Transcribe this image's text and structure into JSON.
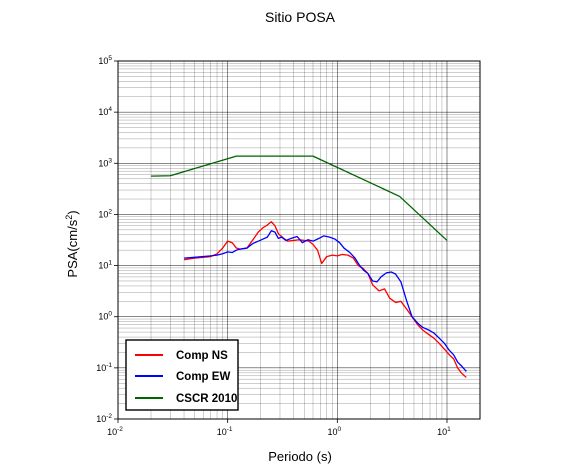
{
  "chart_data": {
    "type": "line",
    "title": "Sitio POSA",
    "xlabel": "Periodo (s)",
    "ylabel_base": "PSA(cm/s",
    "ylabel_sup": "2",
    "ylabel_tail": ")",
    "x_scale": "log",
    "y_scale": "log",
    "xlim": [
      0.01,
      20
    ],
    "ylim": [
      0.01,
      100000
    ],
    "grid": true,
    "legend_position": "bottom-left",
    "x_ticks": [
      {
        "value": 0.01,
        "base": "10",
        "exp": "-2"
      },
      {
        "value": 0.1,
        "base": "10",
        "exp": "-1"
      },
      {
        "value": 1,
        "base": "10",
        "exp": "0"
      },
      {
        "value": 10,
        "base": "10",
        "exp": "1"
      }
    ],
    "y_ticks": [
      {
        "value": 0.01,
        "base": "10",
        "exp": "-2"
      },
      {
        "value": 0.1,
        "base": "10",
        "exp": "-1"
      },
      {
        "value": 1,
        "base": "10",
        "exp": "0"
      },
      {
        "value": 10,
        "base": "10",
        "exp": "1"
      },
      {
        "value": 100,
        "base": "10",
        "exp": "2"
      },
      {
        "value": 1000,
        "base": "10",
        "exp": "3"
      },
      {
        "value": 10000,
        "base": "10",
        "exp": "4"
      },
      {
        "value": 100000,
        "base": "10",
        "exp": "5"
      }
    ],
    "series": [
      {
        "name": "Comp NS",
        "color": "#ff0000",
        "points": [
          [
            0.04,
            13
          ],
          [
            0.05,
            14
          ],
          [
            0.06,
            14.5
          ],
          [
            0.07,
            15
          ],
          [
            0.08,
            17
          ],
          [
            0.09,
            22
          ],
          [
            0.1,
            30
          ],
          [
            0.11,
            28
          ],
          [
            0.12,
            22
          ],
          [
            0.13,
            21
          ],
          [
            0.15,
            22
          ],
          [
            0.17,
            32
          ],
          [
            0.19,
            45
          ],
          [
            0.21,
            55
          ],
          [
            0.23,
            62
          ],
          [
            0.25,
            72
          ],
          [
            0.27,
            60
          ],
          [
            0.29,
            42
          ],
          [
            0.32,
            35
          ],
          [
            0.35,
            30
          ],
          [
            0.4,
            31
          ],
          [
            0.45,
            32
          ],
          [
            0.5,
            31
          ],
          [
            0.55,
            30
          ],
          [
            0.6,
            26
          ],
          [
            0.66,
            20
          ],
          [
            0.72,
            11
          ],
          [
            0.8,
            15
          ],
          [
            0.9,
            16
          ],
          [
            1.0,
            15.5
          ],
          [
            1.1,
            16.5
          ],
          [
            1.25,
            16
          ],
          [
            1.4,
            14
          ],
          [
            1.55,
            10
          ],
          [
            1.7,
            9
          ],
          [
            1.9,
            7
          ],
          [
            2.1,
            4.2
          ],
          [
            2.4,
            3.2
          ],
          [
            2.7,
            3.5
          ],
          [
            3.0,
            2.3
          ],
          [
            3.4,
            1.9
          ],
          [
            3.8,
            2.0
          ],
          [
            4.3,
            1.4
          ],
          [
            4.8,
            1.0
          ],
          [
            5.4,
            0.7
          ],
          [
            6.0,
            0.55
          ],
          [
            6.8,
            0.45
          ],
          [
            7.6,
            0.38
          ],
          [
            8.5,
            0.3
          ],
          [
            9.5,
            0.23
          ],
          [
            10.5,
            0.18
          ],
          [
            11.5,
            0.15
          ],
          [
            12.5,
            0.1
          ],
          [
            13.5,
            0.08
          ],
          [
            15.0,
            0.065
          ]
        ]
      },
      {
        "name": "Comp EW",
        "color": "#0000ff",
        "points": [
          [
            0.04,
            14
          ],
          [
            0.05,
            14.5
          ],
          [
            0.06,
            15
          ],
          [
            0.07,
            15.5
          ],
          [
            0.08,
            16
          ],
          [
            0.09,
            17
          ],
          [
            0.1,
            18.5
          ],
          [
            0.11,
            18
          ],
          [
            0.12,
            20
          ],
          [
            0.13,
            21
          ],
          [
            0.15,
            22
          ],
          [
            0.17,
            27
          ],
          [
            0.19,
            30
          ],
          [
            0.21,
            33
          ],
          [
            0.23,
            36
          ],
          [
            0.25,
            48
          ],
          [
            0.27,
            45
          ],
          [
            0.29,
            34
          ],
          [
            0.31,
            36
          ],
          [
            0.34,
            31
          ],
          [
            0.38,
            34
          ],
          [
            0.43,
            37
          ],
          [
            0.48,
            28
          ],
          [
            0.54,
            32
          ],
          [
            0.6,
            30
          ],
          [
            0.68,
            34
          ],
          [
            0.75,
            38
          ],
          [
            0.85,
            36
          ],
          [
            0.95,
            33
          ],
          [
            1.05,
            28
          ],
          [
            1.15,
            22
          ],
          [
            1.3,
            18
          ],
          [
            1.45,
            14
          ],
          [
            1.6,
            10
          ],
          [
            1.75,
            8
          ],
          [
            1.9,
            7
          ],
          [
            2.1,
            5
          ],
          [
            2.3,
            4.8
          ],
          [
            2.5,
            6
          ],
          [
            2.8,
            7.2
          ],
          [
            3.1,
            7.5
          ],
          [
            3.4,
            6.8
          ],
          [
            3.8,
            4.8
          ],
          [
            4.3,
            2.0
          ],
          [
            4.8,
            1.0
          ],
          [
            5.4,
            0.75
          ],
          [
            6.0,
            0.62
          ],
          [
            6.8,
            0.55
          ],
          [
            7.6,
            0.48
          ],
          [
            8.5,
            0.38
          ],
          [
            9.5,
            0.3
          ],
          [
            10.5,
            0.22
          ],
          [
            11.5,
            0.18
          ],
          [
            12.5,
            0.13
          ],
          [
            13.5,
            0.11
          ],
          [
            15.0,
            0.085
          ]
        ]
      },
      {
        "name": "CSCR 2010",
        "color": "#006400",
        "points": [
          [
            0.02,
            560
          ],
          [
            0.03,
            570
          ],
          [
            0.12,
            1380
          ],
          [
            0.6,
            1380
          ],
          [
            3.7,
            225
          ],
          [
            10.0,
            31
          ]
        ]
      }
    ]
  }
}
